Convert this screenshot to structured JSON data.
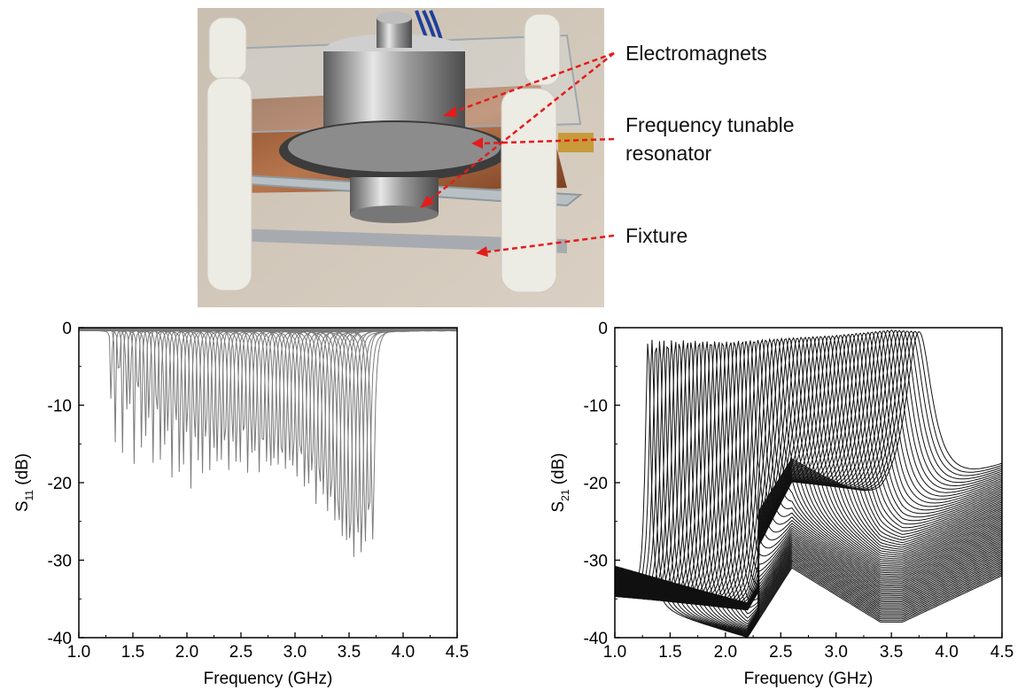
{
  "photo": {
    "callouts": [
      {
        "id": "electromagnets",
        "text": "Electromagnets"
      },
      {
        "id": "resonator",
        "line1": "Frequency tunable",
        "line2": "resonator"
      },
      {
        "id": "fixture",
        "text": "Fixture"
      }
    ]
  },
  "chart_data": [
    {
      "type": "line",
      "title": "",
      "xlabel": "Frequency (GHz)",
      "ylabel_main": "S",
      "ylabel_sub": "11",
      "ylabel_unit": " (dB)",
      "xlim": [
        1.0,
        4.5
      ],
      "ylim": [
        -40,
        0
      ],
      "xticks": [
        "1.0",
        "1.5",
        "2.0",
        "2.5",
        "3.0",
        "3.5",
        "4.0",
        "4.5"
      ],
      "yticks": [
        "0",
        "-10",
        "-20",
        "-30",
        "-40"
      ],
      "grid": false,
      "line_color": "#7a7a7a",
      "series_note": "family of resonance curves; resonance frequency and minimum depth per trace",
      "resonances": {
        "freq_start": 1.3,
        "freq_end": 3.72,
        "depth_points": [
          [
            1.3,
            -17
          ],
          [
            1.5,
            -18
          ],
          [
            1.8,
            -19.5
          ],
          [
            2.0,
            -20.5
          ],
          [
            2.5,
            -18.5
          ],
          [
            3.0,
            -19.5
          ],
          [
            3.3,
            -24
          ],
          [
            3.5,
            -30
          ],
          [
            3.6,
            -30
          ],
          [
            3.7,
            -27
          ]
        ]
      }
    },
    {
      "type": "line",
      "title": "",
      "xlabel": "Frequency (GHz)",
      "ylabel_main": "S",
      "ylabel_sub": "21",
      "ylabel_unit": " (dB)",
      "xlim": [
        1.0,
        4.5
      ],
      "ylim": [
        -40,
        0
      ],
      "xticks": [
        "1.0",
        "1.5",
        "2.0",
        "2.5",
        "3.0",
        "3.5",
        "4.0",
        "4.5"
      ],
      "yticks": [
        "0",
        "-10",
        "-20",
        "-30",
        "-40"
      ],
      "grid": false,
      "line_color": "#111111",
      "series_note": "family of transmission curves; peak near 0 dB moving from 1.3 to 3.75 GHz",
      "resonances": {
        "freq_start": 1.3,
        "freq_end": 3.75,
        "peak_points": [
          [
            1.3,
            -1.5
          ],
          [
            2.0,
            -1.8
          ],
          [
            3.0,
            -1.0
          ],
          [
            3.5,
            -0.3
          ],
          [
            3.75,
            -0.5
          ]
        ],
        "baseline_left": [
          [
            1.0,
            -35
          ],
          [
            2.2,
            -40
          ],
          [
            2.6,
            -31
          ],
          [
            3.4,
            -38
          ],
          [
            3.6,
            -38
          ],
          [
            4.5,
            -32
          ]
        ]
      }
    }
  ]
}
